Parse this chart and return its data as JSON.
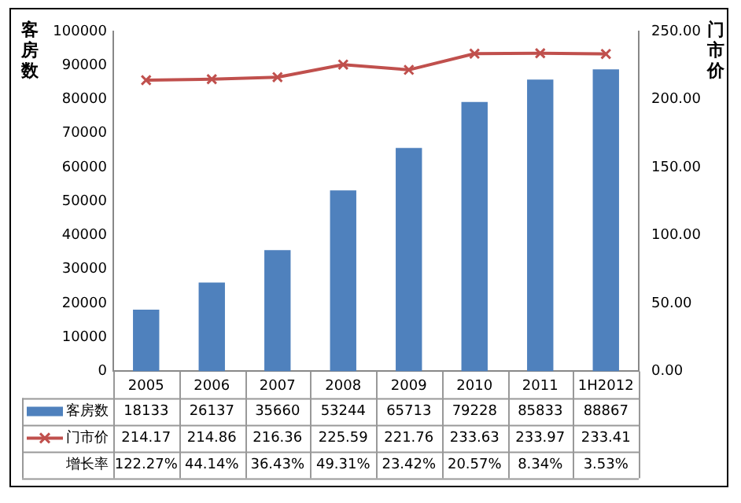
{
  "chart_data": {
    "type": "bar",
    "ylabel": "客房数",
    "y2label": "门市价",
    "categories": [
      "2005",
      "2006",
      "2007",
      "2008",
      "2009",
      "2010",
      "2011",
      "1H2012"
    ],
    "series": [
      {
        "name": "客房数",
        "color": "#4f81bd",
        "values": [
          18133,
          26137,
          35660,
          53244,
          65713,
          79228,
          85833,
          88867
        ]
      },
      {
        "name": "门市价",
        "type": "line",
        "axis": "y2",
        "color": "#c0504d",
        "values": [
          214.17,
          214.86,
          216.36,
          225.59,
          221.76,
          233.63,
          233.97,
          233.41
        ]
      }
    ],
    "ylim": [
      0,
      100000
    ],
    "yticks": [
      0,
      10000,
      20000,
      30000,
      40000,
      50000,
      60000,
      70000,
      80000,
      90000,
      100000
    ],
    "y2lim": [
      0,
      250
    ],
    "y2ticks": [
      {
        "value": 0,
        "label": "0.00"
      },
      {
        "value": 50,
        "label": "50.00"
      },
      {
        "value": 100,
        "label": "100.00"
      },
      {
        "value": 150,
        "label": "150.00"
      },
      {
        "value": 200,
        "label": "200.00"
      },
      {
        "value": 250,
        "label": "250.00"
      }
    ],
    "annotations": [
      "增长率",
      "122.27%",
      "44.14%",
      "36.43%",
      "49.31%",
      "23.42%",
      "20.57%",
      "8.34%",
      "3.53%"
    ],
    "data_labels": true,
    "legend": "bottom",
    "marker": "cross",
    "grid": false
  }
}
